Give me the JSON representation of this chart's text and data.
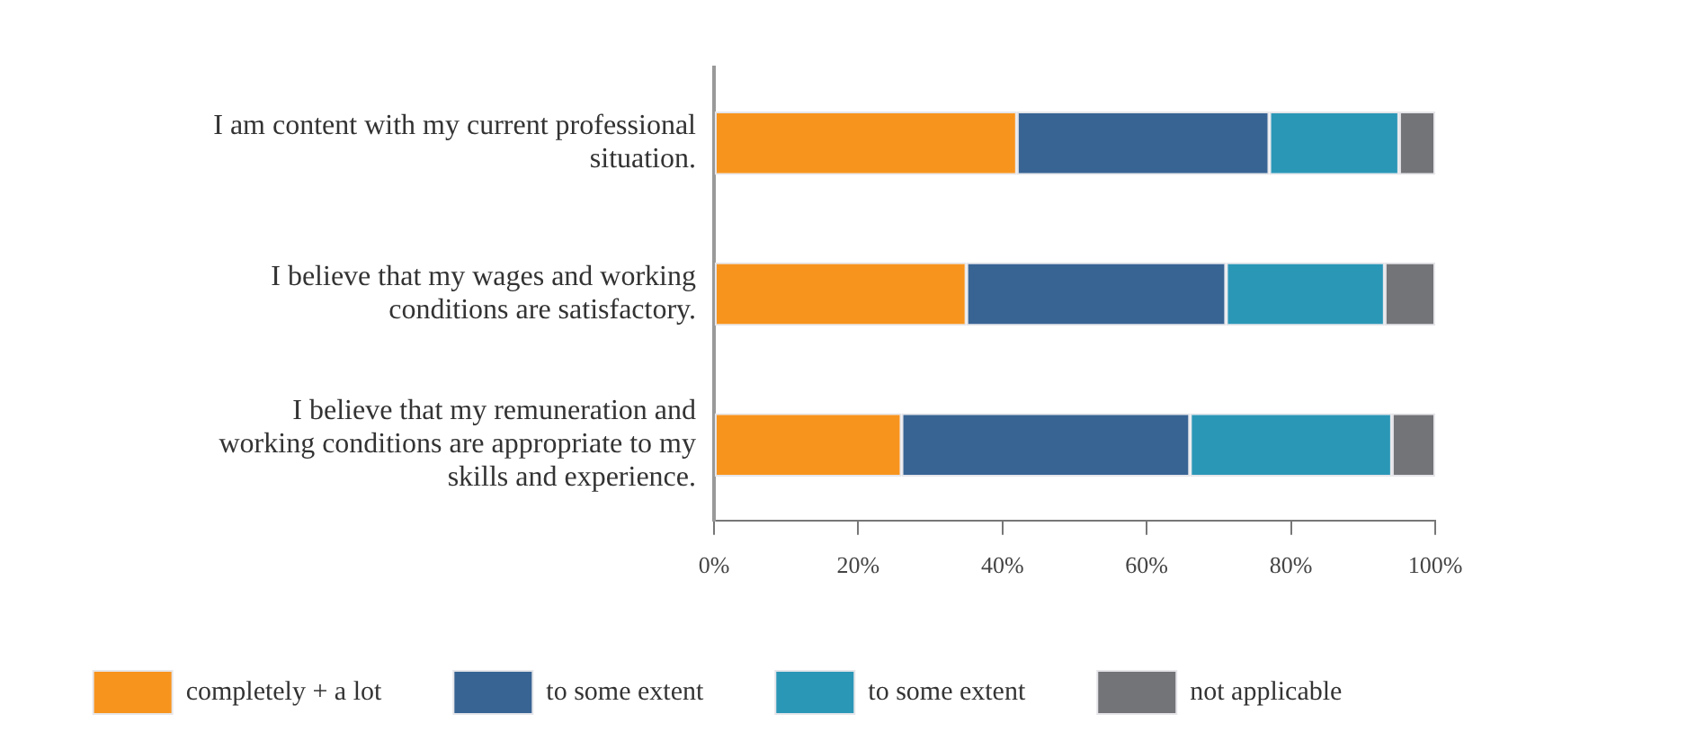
{
  "chart_data": {
    "type": "bar",
    "orientation": "horizontal",
    "stacked": true,
    "categories": [
      "I am content with my current professional situation.",
      "I believe that my wages and working conditions are satisfactory.",
      "I believe that my remuneration and working conditions are appropriate to my skills and experience."
    ],
    "series": [
      {
        "name": "completely + a lot",
        "color": "#f7941e",
        "values": [
          42,
          35,
          26
        ]
      },
      {
        "name": "to some extent",
        "color": "#386494",
        "values": [
          35,
          36,
          40
        ]
      },
      {
        "name": "to some extent",
        "color": "#2b97b7",
        "values": [
          18,
          22,
          28
        ]
      },
      {
        "name": "not applicable",
        "color": "#737477",
        "values": [
          5,
          7,
          6
        ]
      }
    ],
    "xlim": [
      0,
      100
    ],
    "xticks": [
      {
        "value": 0,
        "label": "0%"
      },
      {
        "value": 20,
        "label": "20%"
      },
      {
        "value": 40,
        "label": "40%"
      },
      {
        "value": 60,
        "label": "60%"
      },
      {
        "value": 80,
        "label": "80%"
      },
      {
        "value": 100,
        "label": "100%"
      }
    ],
    "grid": false,
    "legend": "bottom"
  }
}
